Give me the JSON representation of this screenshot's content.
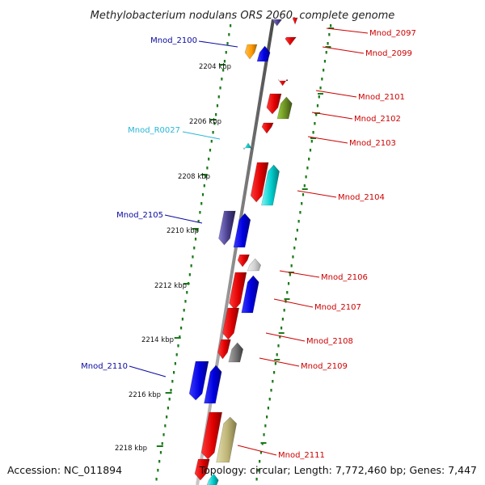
{
  "title": "Methylobacterium nodulans ORS 2060, complete genome",
  "footer": {
    "accession": "Accession: NC_011894",
    "topology": "Topology: circular; Length: 7,772,460 bp; Genes: 7,447"
  },
  "colors": {
    "forward_label": "#0a0aa0",
    "reverse_label": "#cc0000",
    "rna_label": "#29b6d6",
    "backbone": "#888888",
    "tick": "#1a7a1a"
  },
  "ticks": [
    "2204 kbp",
    "2206 kbp",
    "2208 kbp",
    "2210 kbp",
    "2212 kbp",
    "2214 kbp",
    "2216 kbp",
    "2218 kbp"
  ],
  "gene_labels": {
    "left": [
      "Mnod_2100",
      "Mnod_R0027",
      "Mnod_2105",
      "Mnod_2110"
    ],
    "right": [
      "Mnod_2097",
      "Mnod_2099",
      "Mnod_2101",
      "Mnod_2102",
      "Mnod_2103",
      "Mnod_2104",
      "Mnod_2106",
      "Mnod_2107",
      "Mnod_2108",
      "Mnod_2109",
      "Mnod_2111"
    ]
  }
}
